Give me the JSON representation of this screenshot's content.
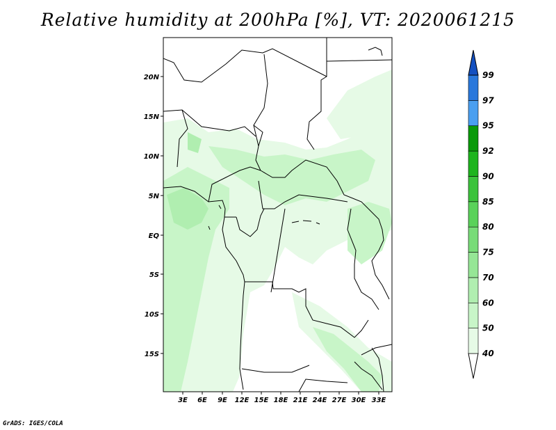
{
  "title": "Relative humidity at 200hPa [%], VT: 2020061215",
  "credit": "GrADS: IGES/COLA",
  "map": {
    "lon_range": [
      0,
      36
    ],
    "lat_range": [
      -20,
      25
    ],
    "x_ticks": [
      "3E",
      "6E",
      "9E",
      "12E",
      "15E",
      "18E",
      "21E",
      "24E",
      "27E",
      "30E",
      "33E"
    ],
    "y_ticks": [
      "20N",
      "15N",
      "10N",
      "5N",
      "EQ",
      "5S",
      "10S",
      "15S"
    ]
  },
  "colorbar": {
    "labels": [
      "40",
      "50",
      "60",
      "70",
      "75",
      "80",
      "85",
      "90",
      "92",
      "95",
      "97",
      "99"
    ],
    "colors": [
      "#ffffff",
      "#e6fae6",
      "#c8f5c8",
      "#b0eeb0",
      "#96e696",
      "#78dc78",
      "#5ad25a",
      "#3cc33c",
      "#1eb41e",
      "#0a9a0a",
      "#4a9ff0",
      "#2a78dc",
      "#1450c0"
    ]
  },
  "chart_data": {
    "type": "heatmap",
    "title": "Relative humidity at 200hPa [%], VT: 2020061215",
    "variable": "Relative humidity",
    "units": "%",
    "level": "200hPa",
    "valid_time": "2020061215",
    "legend_levels": [
      40,
      50,
      60,
      70,
      75,
      80,
      85,
      90,
      92,
      95,
      97,
      99
    ],
    "colorbar_placement": "right",
    "dominant_range": "40-70"
  }
}
